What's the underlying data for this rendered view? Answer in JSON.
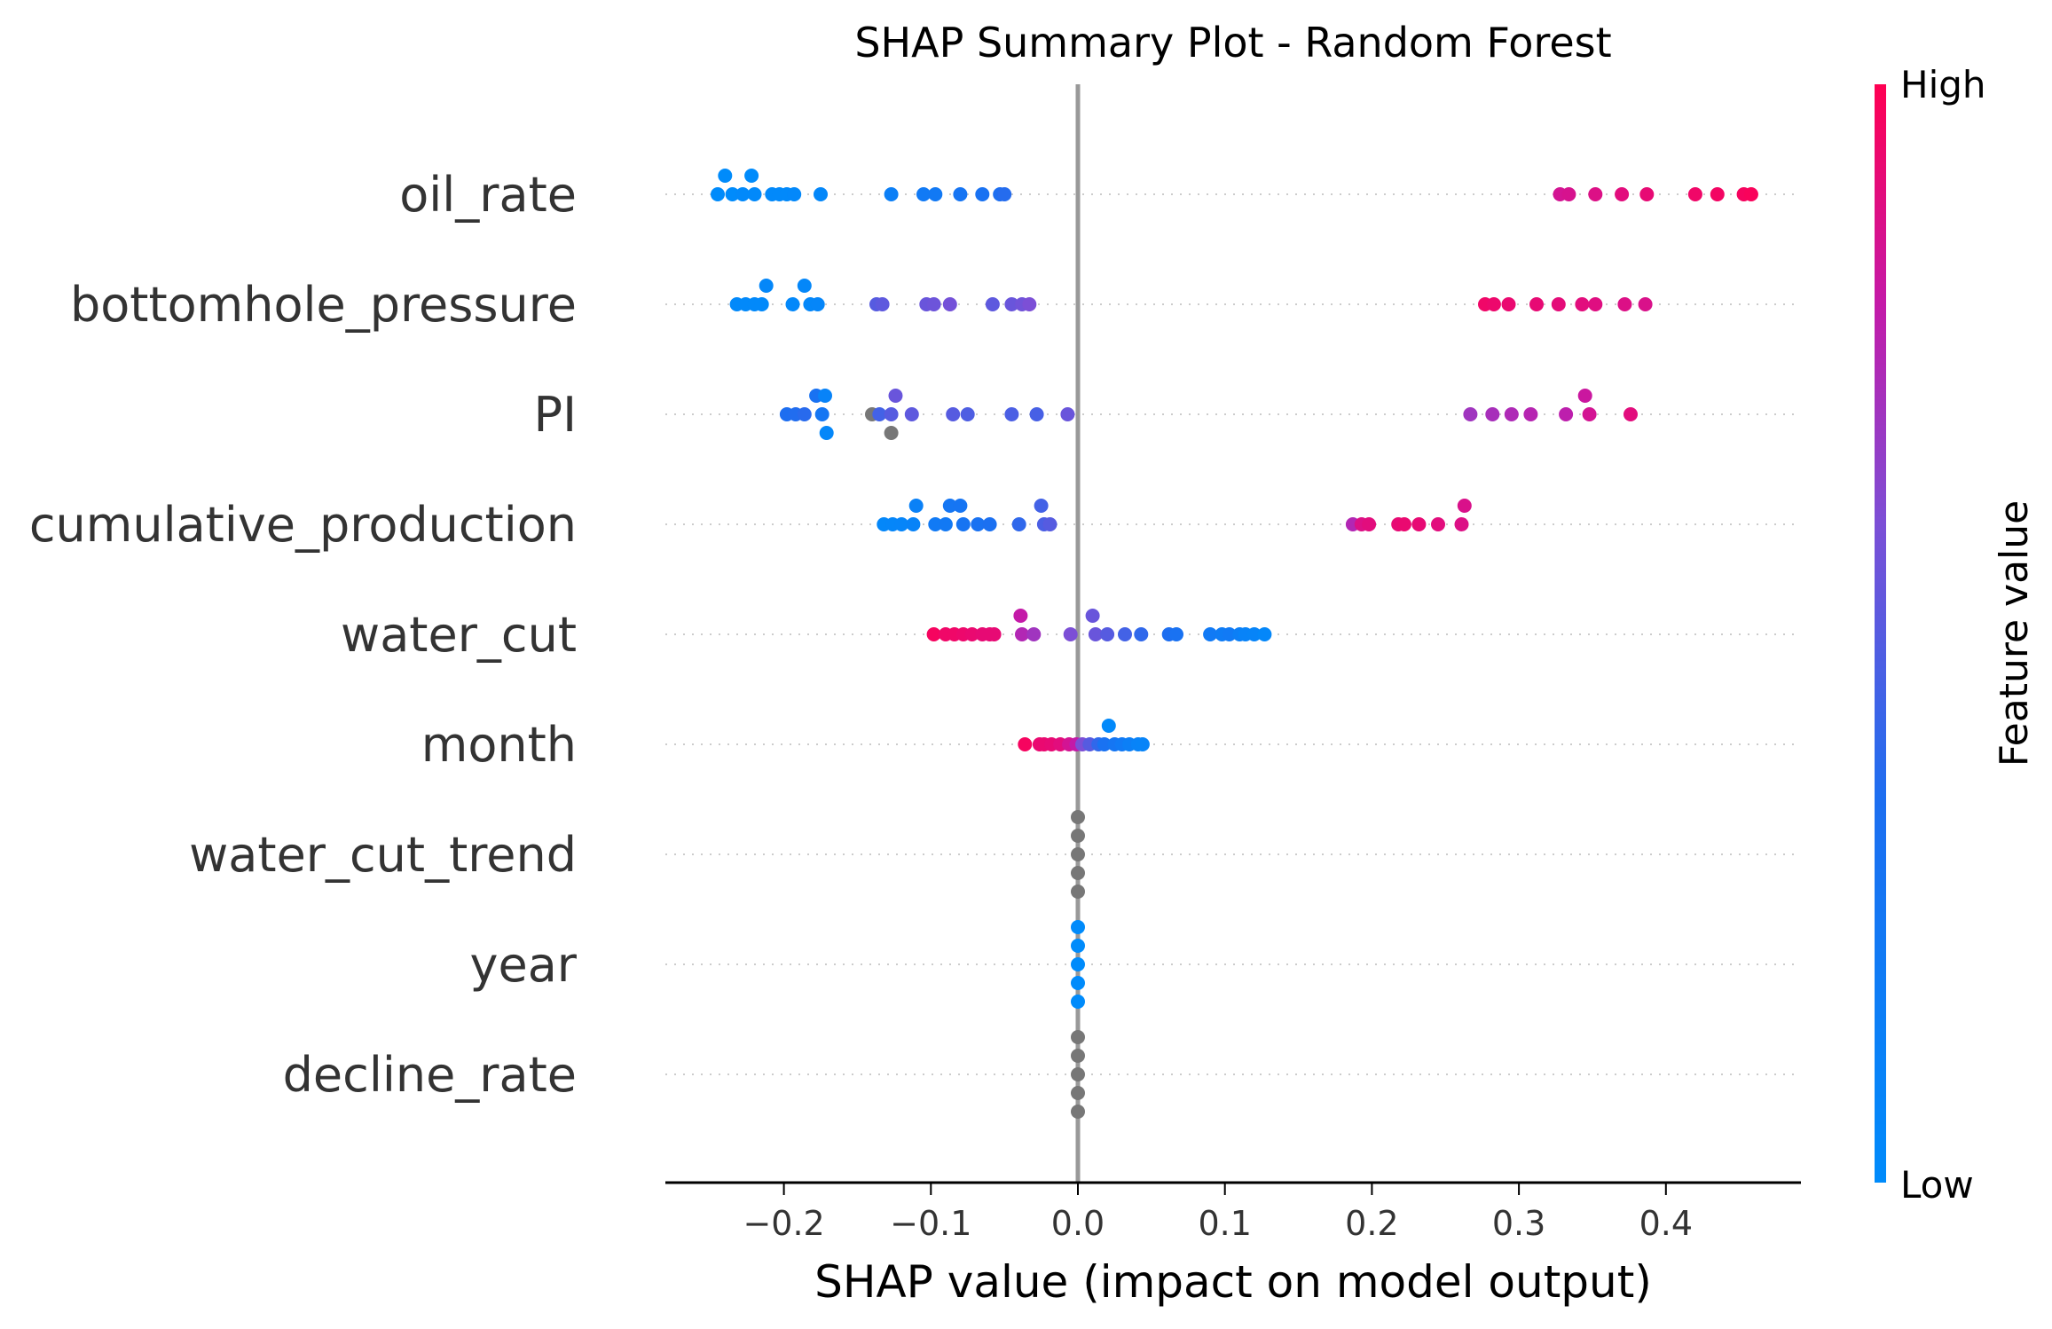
{
  "chart_data": {
    "type": "scatter",
    "subtype": "shap-beeswarm",
    "title": "SHAP Summary Plot - Random Forest",
    "xlabel": "SHAP value (impact on model output)",
    "xlim": [
      -0.28,
      0.49
    ],
    "xticks": [
      {
        "value": -0.2,
        "label": "−0.2"
      },
      {
        "value": -0.1,
        "label": "−0.1"
      },
      {
        "value": 0.0,
        "label": "0.0"
      },
      {
        "value": 0.1,
        "label": "0.1"
      },
      {
        "value": 0.2,
        "label": "0.2"
      },
      {
        "value": 0.3,
        "label": "0.3"
      },
      {
        "value": 0.4,
        "label": "0.4"
      }
    ],
    "grid": false,
    "zero_line": true,
    "colorbar": {
      "title": "Feature value",
      "high_label": "High",
      "low_label": "Low",
      "low_color": "#008bfb",
      "high_color": "#ff0052",
      "placement": "right"
    },
    "features": [
      {
        "name": "oil_rate",
        "points": [
          {
            "x": -0.245,
            "v": 0.0,
            "o": 0
          },
          {
            "x": -0.24,
            "v": 0.0,
            "o": 1
          },
          {
            "x": -0.235,
            "v": 0.0,
            "o": 0
          },
          {
            "x": -0.228,
            "v": 0.02,
            "o": 0
          },
          {
            "x": -0.222,
            "v": 0.0,
            "o": 1
          },
          {
            "x": -0.22,
            "v": 0.02,
            "o": 0
          },
          {
            "x": -0.208,
            "v": 0.02,
            "o": 0
          },
          {
            "x": -0.203,
            "v": 0.03,
            "o": 0
          },
          {
            "x": -0.198,
            "v": 0.03,
            "o": 0
          },
          {
            "x": -0.193,
            "v": 0.04,
            "o": 0
          },
          {
            "x": -0.175,
            "v": 0.05,
            "o": 0
          },
          {
            "x": -0.127,
            "v": 0.15,
            "o": 0
          },
          {
            "x": -0.105,
            "v": 0.2,
            "o": 0
          },
          {
            "x": -0.097,
            "v": 0.22,
            "o": 0
          },
          {
            "x": -0.08,
            "v": 0.27,
            "o": 0
          },
          {
            "x": -0.065,
            "v": 0.3,
            "o": 0
          },
          {
            "x": -0.053,
            "v": 0.35,
            "o": 0
          },
          {
            "x": -0.05,
            "v": 0.37,
            "o": 0
          },
          {
            "x": 0.328,
            "v": 0.85,
            "o": 0
          },
          {
            "x": 0.334,
            "v": 0.86,
            "o": 0
          },
          {
            "x": 0.352,
            "v": 0.88,
            "o": 0
          },
          {
            "x": 0.37,
            "v": 0.9,
            "o": 0
          },
          {
            "x": 0.387,
            "v": 0.92,
            "o": 0
          },
          {
            "x": 0.42,
            "v": 0.95,
            "o": 0
          },
          {
            "x": 0.435,
            "v": 0.96,
            "o": 0
          },
          {
            "x": 0.453,
            "v": 0.97,
            "o": 0
          },
          {
            "x": 0.458,
            "v": 0.98,
            "o": 0
          }
        ]
      },
      {
        "name": "bottomhole_pressure",
        "points": [
          {
            "x": -0.232,
            "v": 0.02,
            "o": 0
          },
          {
            "x": -0.226,
            "v": 0.02,
            "o": 0
          },
          {
            "x": -0.22,
            "v": 0.03,
            "o": 0
          },
          {
            "x": -0.215,
            "v": 0.03,
            "o": 0
          },
          {
            "x": -0.212,
            "v": 0.05,
            "o": 1
          },
          {
            "x": -0.194,
            "v": 0.04,
            "o": 0
          },
          {
            "x": -0.186,
            "v": 0.05,
            "o": 1
          },
          {
            "x": -0.182,
            "v": 0.05,
            "o": 0
          },
          {
            "x": -0.177,
            "v": 0.06,
            "o": 0
          },
          {
            "x": -0.137,
            "v": 0.5,
            "o": 0
          },
          {
            "x": -0.133,
            "v": 0.52,
            "o": 0
          },
          {
            "x": -0.103,
            "v": 0.55,
            "o": 0
          },
          {
            "x": -0.098,
            "v": 0.56,
            "o": 0
          },
          {
            "x": -0.087,
            "v": 0.58,
            "o": 0
          },
          {
            "x": -0.058,
            "v": 0.52,
            "o": 0
          },
          {
            "x": -0.045,
            "v": 0.55,
            "o": 0
          },
          {
            "x": -0.038,
            "v": 0.57,
            "o": 0
          },
          {
            "x": -0.033,
            "v": 0.6,
            "o": 0
          },
          {
            "x": 0.277,
            "v": 0.95,
            "o": 0
          },
          {
            "x": 0.283,
            "v": 0.94,
            "o": 0
          },
          {
            "x": 0.293,
            "v": 0.93,
            "o": 0
          },
          {
            "x": 0.312,
            "v": 0.92,
            "o": 0
          },
          {
            "x": 0.327,
            "v": 0.91,
            "o": 0
          },
          {
            "x": 0.343,
            "v": 0.9,
            "o": 0
          },
          {
            "x": 0.352,
            "v": 0.89,
            "o": 0
          },
          {
            "x": 0.372,
            "v": 0.88,
            "o": 0
          },
          {
            "x": 0.386,
            "v": 0.87,
            "o": 0
          }
        ]
      },
      {
        "name": "PI",
        "points": [
          {
            "x": -0.198,
            "v": 0.35,
            "o": 0
          },
          {
            "x": -0.192,
            "v": 0.36,
            "o": 0
          },
          {
            "x": -0.186,
            "v": 0.38,
            "o": 0
          },
          {
            "x": -0.178,
            "v": 0.3,
            "o": 1
          },
          {
            "x": -0.174,
            "v": 0.25,
            "o": 0
          },
          {
            "x": -0.172,
            "v": 0.1,
            "o": 1
          },
          {
            "x": -0.171,
            "v": 0.05,
            "o": -1
          },
          {
            "x": -0.14,
            "v": null,
            "o": 0
          },
          {
            "x": -0.135,
            "v": 0.45,
            "o": 0
          },
          {
            "x": -0.127,
            "v": null,
            "o": -1
          },
          {
            "x": -0.127,
            "v": 0.5,
            "o": 0
          },
          {
            "x": -0.124,
            "v": 0.55,
            "o": 1
          },
          {
            "x": -0.113,
            "v": 0.52,
            "o": 0
          },
          {
            "x": -0.085,
            "v": 0.5,
            "o": 0
          },
          {
            "x": -0.075,
            "v": 0.48,
            "o": 0
          },
          {
            "x": -0.045,
            "v": 0.47,
            "o": 0
          },
          {
            "x": -0.028,
            "v": 0.46,
            "o": 0
          },
          {
            "x": -0.007,
            "v": 0.55,
            "o": 0
          },
          {
            "x": 0.267,
            "v": 0.7,
            "o": 0
          },
          {
            "x": 0.282,
            "v": 0.72,
            "o": 0
          },
          {
            "x": 0.295,
            "v": 0.74,
            "o": 0
          },
          {
            "x": 0.308,
            "v": 0.76,
            "o": 0
          },
          {
            "x": 0.332,
            "v": 0.78,
            "o": 0
          },
          {
            "x": 0.345,
            "v": 0.82,
            "o": 1
          },
          {
            "x": 0.348,
            "v": 0.85,
            "o": 0
          },
          {
            "x": 0.376,
            "v": 0.9,
            "o": 0
          }
        ]
      },
      {
        "name": "cumulative_production",
        "points": [
          {
            "x": -0.132,
            "v": 0.05,
            "o": 0
          },
          {
            "x": -0.126,
            "v": 0.06,
            "o": 0
          },
          {
            "x": -0.12,
            "v": 0.07,
            "o": 0
          },
          {
            "x": -0.112,
            "v": 0.1,
            "o": 0
          },
          {
            "x": -0.11,
            "v": 0.12,
            "o": 1
          },
          {
            "x": -0.097,
            "v": 0.2,
            "o": 0
          },
          {
            "x": -0.09,
            "v": 0.22,
            "o": 0
          },
          {
            "x": -0.087,
            "v": 0.25,
            "o": 1
          },
          {
            "x": -0.08,
            "v": 0.27,
            "o": 1
          },
          {
            "x": -0.078,
            "v": 0.28,
            "o": 0
          },
          {
            "x": -0.068,
            "v": 0.3,
            "o": 0
          },
          {
            "x": -0.06,
            "v": 0.32,
            "o": 0
          },
          {
            "x": -0.04,
            "v": 0.4,
            "o": 0
          },
          {
            "x": -0.025,
            "v": 0.45,
            "o": 1
          },
          {
            "x": -0.023,
            "v": 0.47,
            "o": 0
          },
          {
            "x": -0.019,
            "v": 0.5,
            "o": 0
          },
          {
            "x": 0.187,
            "v": 0.75,
            "o": 0
          },
          {
            "x": 0.193,
            "v": 0.88,
            "o": 0
          },
          {
            "x": 0.198,
            "v": 0.9,
            "o": 0
          },
          {
            "x": 0.218,
            "v": 0.92,
            "o": 0
          },
          {
            "x": 0.222,
            "v": 0.93,
            "o": 0
          },
          {
            "x": 0.232,
            "v": 0.92,
            "o": 0
          },
          {
            "x": 0.245,
            "v": 0.9,
            "o": 0
          },
          {
            "x": 0.261,
            "v": 0.88,
            "o": 0
          },
          {
            "x": 0.263,
            "v": 0.87,
            "o": 1
          }
        ]
      },
      {
        "name": "water_cut",
        "points": [
          {
            "x": -0.098,
            "v": 0.97,
            "o": 0
          },
          {
            "x": -0.09,
            "v": 0.95,
            "o": 0
          },
          {
            "x": -0.084,
            "v": 0.95,
            "o": 0
          },
          {
            "x": -0.078,
            "v": 0.94,
            "o": 0
          },
          {
            "x": -0.072,
            "v": 0.93,
            "o": 0
          },
          {
            "x": -0.065,
            "v": 0.92,
            "o": 0
          },
          {
            "x": -0.06,
            "v": 0.92,
            "o": 0
          },
          {
            "x": -0.057,
            "v": 0.92,
            "o": 0
          },
          {
            "x": -0.039,
            "v": 0.8,
            "o": 1
          },
          {
            "x": -0.038,
            "v": 0.75,
            "o": 0
          },
          {
            "x": -0.03,
            "v": 0.7,
            "o": 0
          },
          {
            "x": -0.005,
            "v": 0.6,
            "o": 0
          },
          {
            "x": 0.01,
            "v": 0.55,
            "o": 1
          },
          {
            "x": 0.012,
            "v": 0.55,
            "o": 0
          },
          {
            "x": 0.02,
            "v": 0.5,
            "o": 0
          },
          {
            "x": 0.032,
            "v": 0.45,
            "o": 0
          },
          {
            "x": 0.043,
            "v": 0.4,
            "o": 0
          },
          {
            "x": 0.062,
            "v": 0.35,
            "o": 0
          },
          {
            "x": 0.067,
            "v": 0.3,
            "o": 0
          },
          {
            "x": 0.09,
            "v": 0.2,
            "o": 0
          },
          {
            "x": 0.098,
            "v": 0.18,
            "o": 0
          },
          {
            "x": 0.103,
            "v": 0.2,
            "o": 0
          },
          {
            "x": 0.11,
            "v": 0.15,
            "o": 0
          },
          {
            "x": 0.114,
            "v": 0.1,
            "o": 0
          },
          {
            "x": 0.12,
            "v": 0.08,
            "o": 0
          },
          {
            "x": 0.127,
            "v": 0.05,
            "o": 0
          }
        ]
      },
      {
        "name": "month",
        "points": [
          {
            "x": -0.036,
            "v": 0.97,
            "o": 0
          },
          {
            "x": -0.026,
            "v": 0.93,
            "o": 0
          },
          {
            "x": -0.023,
            "v": 0.93,
            "o": 0
          },
          {
            "x": -0.018,
            "v": 0.92,
            "o": 0
          },
          {
            "x": -0.012,
            "v": 0.9,
            "o": 0
          },
          {
            "x": -0.006,
            "v": 0.85,
            "o": 0
          },
          {
            "x": -0.001,
            "v": 0.8,
            "o": 0
          },
          {
            "x": 0.003,
            "v": 0.6,
            "o": 0
          },
          {
            "x": 0.008,
            "v": 0.5,
            "o": 0
          },
          {
            "x": 0.014,
            "v": 0.4,
            "o": 0
          },
          {
            "x": 0.018,
            "v": 0.3,
            "o": 0
          },
          {
            "x": 0.021,
            "v": 0.02,
            "o": 1
          },
          {
            "x": 0.025,
            "v": 0.25,
            "o": 0
          },
          {
            "x": 0.03,
            "v": 0.2,
            "o": 0
          },
          {
            "x": 0.035,
            "v": 0.15,
            "o": 0
          },
          {
            "x": 0.041,
            "v": 0.1,
            "o": 0
          },
          {
            "x": 0.044,
            "v": 0.08,
            "o": 0
          }
        ]
      },
      {
        "name": "water_cut_trend",
        "points": [
          {
            "x": 0.0,
            "v": null,
            "o": -2
          },
          {
            "x": 0.0,
            "v": null,
            "o": -1
          },
          {
            "x": 0.0,
            "v": null,
            "o": 0
          },
          {
            "x": 0.0,
            "v": null,
            "o": 1
          },
          {
            "x": 0.0,
            "v": null,
            "o": 2
          }
        ]
      },
      {
        "name": "year",
        "points": [
          {
            "x": 0.0,
            "v": 0.0,
            "o": -2
          },
          {
            "x": 0.0,
            "v": 0.0,
            "o": -1
          },
          {
            "x": 0.0,
            "v": 0.0,
            "o": 0
          },
          {
            "x": 0.0,
            "v": 0.0,
            "o": 1
          },
          {
            "x": 0.0,
            "v": 0.0,
            "o": 2
          }
        ]
      },
      {
        "name": "decline_rate",
        "points": [
          {
            "x": 0.0,
            "v": null,
            "o": -2
          },
          {
            "x": 0.0,
            "v": null,
            "o": -1
          },
          {
            "x": 0.0,
            "v": null,
            "o": 0
          },
          {
            "x": 0.0,
            "v": null,
            "o": 1
          },
          {
            "x": 0.0,
            "v": null,
            "o": 2
          }
        ]
      }
    ],
    "missing_value_color": "#777777"
  }
}
